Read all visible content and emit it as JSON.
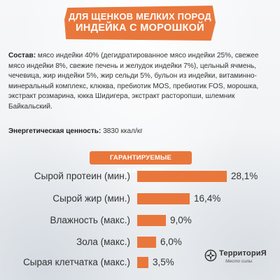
{
  "header": {
    "line1": "ДЛЯ ЩЕНКОВ МЕЛКИХ ПОРОД",
    "line2": "ИНДЕЙКА С МОРОШКОЙ"
  },
  "composition": {
    "label": "Состав:",
    "text": "мясо индейки 40% (дегидратированное мясо индейки 25%, свежее мясо индейки 8%, свежие печень и желудок индейки 7%), цельный ячмень, чечевица, жир индейки 5%, жир сельди 5%, бульон из индейки, витаминно-минеральный комплекс, клюква, пребиотик MOS, пребиотик FOS, морошка, экстракт розмарина, юкка Шидигера, экстракт расторопши, шлемник Байкальский."
  },
  "energy": {
    "label": "Энергетическая ценность:",
    "value": "3830 ккал/кг"
  },
  "indicators_title": "ГАРАНТИРУЕМЫЕ ПОКАЗАТЕЛИ",
  "indicators": [
    {
      "label": "Сырой протеин (мин.)",
      "value": 28.1,
      "display": "28,1%"
    },
    {
      "label": "Сырой жир (мин.)",
      "value": 16.4,
      "display": "16,4%"
    },
    {
      "label": "Влажность (макс.)",
      "value": 9.0,
      "display": "9,0%"
    },
    {
      "label": "Зола (макс.)",
      "value": 6.0,
      "display": "6,0%"
    },
    {
      "label": "Сырая клетчатка (макс.)",
      "value": 3.5,
      "display": "3,5%"
    }
  ],
  "logo": {
    "name": "ТерриториЯ",
    "tagline": "Место силы",
    "emblem_icon": "compass-rose-icon"
  },
  "colors": {
    "accent": "#e9773c",
    "text": "#333333"
  }
}
